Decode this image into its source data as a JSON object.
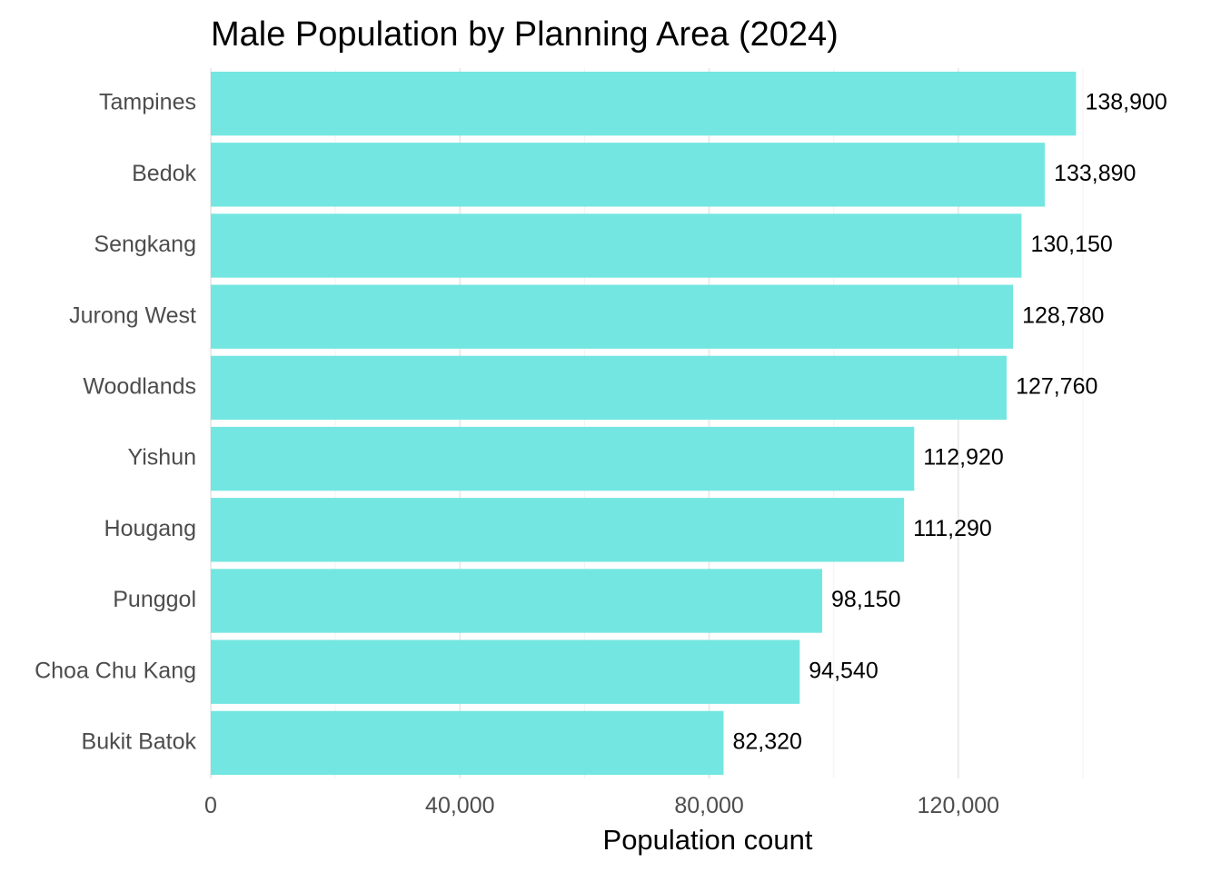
{
  "chart_data": {
    "type": "bar",
    "orientation": "horizontal",
    "title": "Male Population by Planning Area (2024)",
    "xlabel": "Population count",
    "ylabel": "",
    "categories": [
      "Tampines",
      "Bedok",
      "Sengkang",
      "Jurong West",
      "Woodlands",
      "Yishun",
      "Hougang",
      "Punggol",
      "Choa Chu Kang",
      "Bukit Batok"
    ],
    "values": [
      138900,
      133890,
      130150,
      128780,
      127760,
      112920,
      111290,
      98150,
      94540,
      82320
    ],
    "value_labels": [
      "138,900",
      "133,890",
      "130,150",
      "128,780",
      "127,760",
      "112,920",
      "111,290",
      "98,150",
      "94,540",
      "82,320"
    ],
    "xlim": [
      0,
      140000
    ],
    "x_ticks": [
      0,
      40000,
      80000,
      120000
    ],
    "x_tick_labels": [
      "0",
      "40,000",
      "80,000",
      "120,000"
    ],
    "x_minor_ticks": [
      20000,
      60000,
      100000,
      140000
    ],
    "grid": true,
    "legend": "none",
    "bar_color": "#74E6E1"
  }
}
